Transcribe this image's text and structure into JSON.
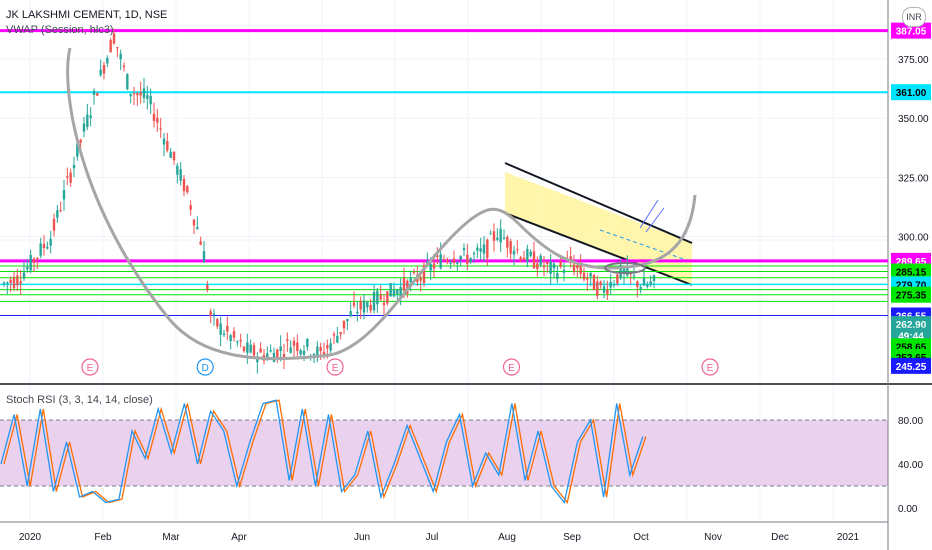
{
  "header": {
    "symbol": "JK LAKSHMI CEMENT, 1D, NSE",
    "indicator": "VWAP (Session, hlc3)",
    "currency": "INR"
  },
  "oscillator": {
    "label": "Stoch RSI (3, 3, 14, 14, close)"
  },
  "chart_data": {
    "type": "candlestick",
    "xlabel_ticks": [
      "2020",
      "Feb",
      "Mar",
      "Apr",
      "Jun",
      "Jul",
      "Aug",
      "Sep",
      "Oct",
      "Nov",
      "Dec",
      "2021"
    ],
    "price_ticks": [
      375.0,
      350.0,
      325.0,
      300.0
    ],
    "ylim": [
      238,
      400
    ],
    "price_path": [
      [
        0,
        280
      ],
      [
        5,
        282
      ],
      [
        10,
        288
      ],
      [
        18,
        300
      ],
      [
        25,
        325
      ],
      [
        32,
        350
      ],
      [
        38,
        372
      ],
      [
        42,
        385
      ],
      [
        48,
        362
      ],
      [
        55,
        358
      ],
      [
        62,
        340
      ],
      [
        70,
        318
      ],
      [
        76,
        295
      ],
      [
        79,
        265
      ],
      [
        82,
        262
      ],
      [
        86,
        258
      ],
      [
        92,
        252
      ],
      [
        98,
        250
      ],
      [
        104,
        251
      ],
      [
        110,
        255
      ],
      [
        116,
        253
      ],
      [
        121,
        250
      ],
      [
        127,
        258
      ],
      [
        133,
        268
      ],
      [
        140,
        272
      ],
      [
        147,
        276
      ],
      [
        153,
        279
      ],
      [
        160,
        284
      ],
      [
        166,
        290
      ],
      [
        172,
        292
      ],
      [
        178,
        291
      ],
      [
        184,
        294
      ],
      [
        188,
        302
      ],
      [
        192,
        298
      ],
      [
        198,
        292
      ],
      [
        204,
        289
      ],
      [
        210,
        285
      ],
      [
        216,
        289
      ],
      [
        222,
        283
      ],
      [
        228,
        277
      ],
      [
        233,
        282
      ],
      [
        236,
        285
      ],
      [
        240,
        282
      ],
      [
        244,
        279
      ],
      [
        248,
        280
      ]
    ],
    "price_labels": [
      {
        "value": "387.05",
        "price": 387.05,
        "bg": "#ff00ff",
        "fg": "#ffffff"
      },
      {
        "value": "361.00",
        "price": 361.0,
        "bg": "#00e5ff",
        "fg": "#000000"
      },
      {
        "value": "289.65",
        "price": 289.65,
        "bg": "#ff00ff",
        "fg": "#ffffff"
      },
      {
        "value": "285.15",
        "price": 285.15,
        "bg": "#00e600",
        "fg": "#000000"
      },
      {
        "value": "279.70",
        "price": 279.7,
        "bg": "#00e5ff",
        "fg": "#000000"
      },
      {
        "value": "275.35",
        "price": 275.35,
        "bg": "#00e600",
        "fg": "#000000"
      },
      {
        "value": "266.55",
        "price": 266.55,
        "bg": "#1a1aff",
        "fg": "#ffffff"
      },
      {
        "value": "262.90",
        "price": 262.9,
        "bg": "#26a69a",
        "fg": "#ffffff"
      },
      {
        "value": "49:44",
        "price": 258.0,
        "bg": "#26a69a",
        "fg": "#ffffff"
      },
      {
        "value": "258.65",
        "price": 253.5,
        "bg": "#00e600",
        "fg": "#000000"
      },
      {
        "value": "252.65",
        "price": 249.0,
        "bg": "#00e600",
        "fg": "#000000"
      },
      {
        "value": "245.25",
        "price": 245.25,
        "bg": "#1a1aff",
        "fg": "#ffffff"
      }
    ],
    "horizontal_lines": [
      {
        "price": 387.05,
        "color": "#ff00ff",
        "width": 3
      },
      {
        "price": 361.0,
        "color": "#00e5ff",
        "width": 2
      },
      {
        "price": 289.65,
        "color": "#ff00ff",
        "width": 3
      },
      {
        "price": 287.5,
        "color": "#00e600",
        "width": 1
      },
      {
        "price": 285.15,
        "color": "#00e600",
        "width": 1
      },
      {
        "price": 282.5,
        "color": "#00e600",
        "width": 1
      },
      {
        "price": 279.7,
        "color": "#00e5ff",
        "width": 1.5
      },
      {
        "price": 277.5,
        "color": "#00e600",
        "width": 1
      },
      {
        "price": 275.35,
        "color": "#00e600",
        "width": 1
      },
      {
        "price": 272.5,
        "color": "#00e600",
        "width": 1
      },
      {
        "price": 266.55,
        "color": "#1a1aff",
        "width": 1
      }
    ],
    "events": [
      {
        "label": "E",
        "bar": 37,
        "color": "#f06292"
      },
      {
        "label": "D",
        "bar": 84,
        "color": "#2196f3"
      },
      {
        "label": "E",
        "bar": 137,
        "color": "#f06292"
      },
      {
        "label": "E",
        "bar": 209,
        "color": "#f06292"
      },
      {
        "label": "E",
        "bar": 290,
        "color": "#f06292"
      }
    ],
    "stoch_rsi": {
      "ticks": [
        80.0,
        40.0,
        0.0
      ],
      "band": [
        20,
        80
      ],
      "k_path": [
        [
          0,
          40
        ],
        [
          5,
          85
        ],
        [
          10,
          20
        ],
        [
          15,
          90
        ],
        [
          20,
          15
        ],
        [
          25,
          60
        ],
        [
          30,
          10
        ],
        [
          35,
          15
        ],
        [
          40,
          5
        ],
        [
          45,
          8
        ],
        [
          50,
          70
        ],
        [
          55,
          45
        ],
        [
          60,
          90
        ],
        [
          65,
          50
        ],
        [
          70,
          95
        ],
        [
          75,
          40
        ],
        [
          80,
          88
        ],
        [
          85,
          70
        ],
        [
          90,
          20
        ],
        [
          95,
          60
        ],
        [
          100,
          95
        ],
        [
          105,
          98
        ],
        [
          110,
          25
        ],
        [
          115,
          90
        ],
        [
          120,
          20
        ],
        [
          125,
          85
        ],
        [
          130,
          15
        ],
        [
          135,
          30
        ],
        [
          140,
          70
        ],
        [
          145,
          10
        ],
        [
          150,
          40
        ],
        [
          155,
          75
        ],
        [
          160,
          45
        ],
        [
          165,
          15
        ],
        [
          170,
          60
        ],
        [
          175,
          85
        ],
        [
          180,
          20
        ],
        [
          185,
          50
        ],
        [
          190,
          30
        ],
        [
          195,
          95
        ],
        [
          200,
          25
        ],
        [
          205,
          70
        ],
        [
          210,
          20
        ],
        [
          215,
          5
        ],
        [
          220,
          60
        ],
        [
          225,
          80
        ],
        [
          230,
          10
        ],
        [
          235,
          95
        ],
        [
          240,
          30
        ],
        [
          245,
          65
        ]
      ],
      "k_color": "#2196f3",
      "d_color": "#ff6d00"
    },
    "annotations": [
      {
        "type": "cup",
        "color": "#a6a6a6"
      },
      {
        "type": "descending-channel",
        "color": "#000000",
        "fill": "#fff59d"
      }
    ]
  }
}
